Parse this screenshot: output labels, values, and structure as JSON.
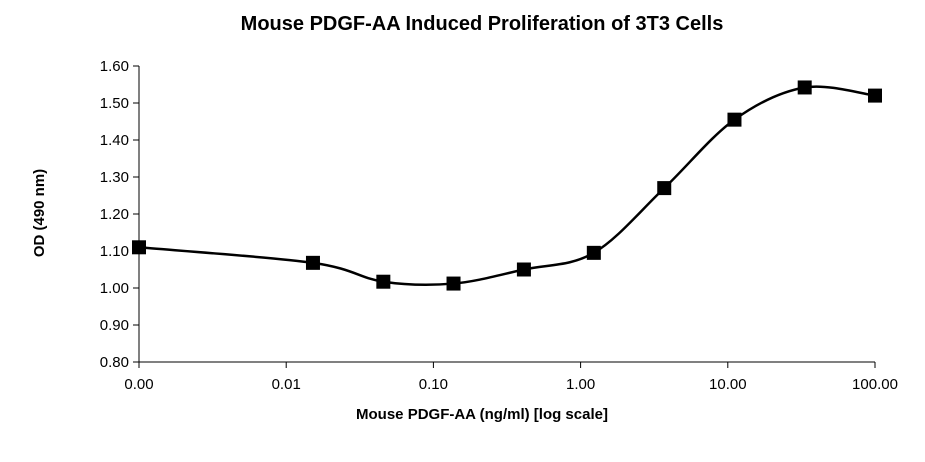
{
  "chart_data": {
    "type": "line",
    "title": "Mouse PDGF-AA Induced Proliferation of 3T3 Cells",
    "xlabel": "Mouse PDGF-AA (ng/ml) [log scale]",
    "ylabel": "OD (490 nm)",
    "x_scale": "log",
    "x_tick_labels": [
      "0.00",
      "0.01",
      "0.10",
      "1.00",
      "10.00",
      "100.00"
    ],
    "y_tick_labels": [
      "0.80",
      "0.90",
      "1.00",
      "1.10",
      "1.20",
      "1.30",
      "1.40",
      "1.50",
      "1.60"
    ],
    "ylim": [
      0.8,
      1.6
    ],
    "xlim": [
      0.001,
      100
    ],
    "grid": false,
    "legend": "none",
    "series": [
      {
        "x": [
          0.001,
          0.0152,
          0.0457,
          0.137,
          0.412,
          1.23,
          3.7,
          11.1,
          33.3,
          100
        ],
        "values": [
          1.11,
          1.068,
          1.017,
          1.012,
          1.05,
          1.095,
          1.27,
          1.455,
          1.542,
          1.52
        ],
        "marker": "square",
        "color": "#000000"
      }
    ]
  }
}
